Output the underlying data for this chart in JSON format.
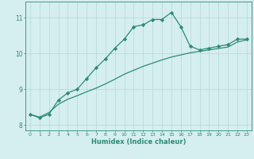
{
  "x": [
    0,
    1,
    2,
    3,
    4,
    5,
    6,
    7,
    8,
    9,
    10,
    11,
    12,
    13,
    14,
    15,
    16,
    17,
    18,
    19,
    20,
    21,
    22,
    23
  ],
  "line1_y": [
    8.3,
    8.2,
    8.3,
    8.7,
    8.9,
    9.0,
    9.3,
    9.6,
    9.85,
    10.15,
    10.4,
    10.75,
    10.8,
    10.95,
    10.95,
    11.15,
    10.75,
    10.2,
    10.1,
    10.15,
    10.2,
    10.25,
    10.4,
    10.4
  ],
  "line2_y": [
    8.3,
    8.22,
    8.35,
    8.58,
    8.72,
    8.82,
    8.93,
    9.03,
    9.15,
    9.28,
    9.42,
    9.53,
    9.64,
    9.73,
    9.82,
    9.9,
    9.96,
    10.02,
    10.06,
    10.1,
    10.14,
    10.18,
    10.32,
    10.38
  ],
  "line_color": "#2d8b78",
  "bg_color": "#d5eeee",
  "grid_color": "#b8d8d8",
  "xlabel": "Humidex (Indice chaleur)",
  "xlim": [
    -0.5,
    23.5
  ],
  "ylim": [
    7.85,
    11.45
  ],
  "yticks": [
    8,
    9,
    10,
    11
  ],
  "xticks": [
    0,
    1,
    2,
    3,
    4,
    5,
    6,
    7,
    8,
    9,
    10,
    11,
    12,
    13,
    14,
    15,
    16,
    17,
    18,
    19,
    20,
    21,
    22,
    23
  ],
  "marker": "D",
  "markersize": 2.2,
  "linewidth": 0.9
}
